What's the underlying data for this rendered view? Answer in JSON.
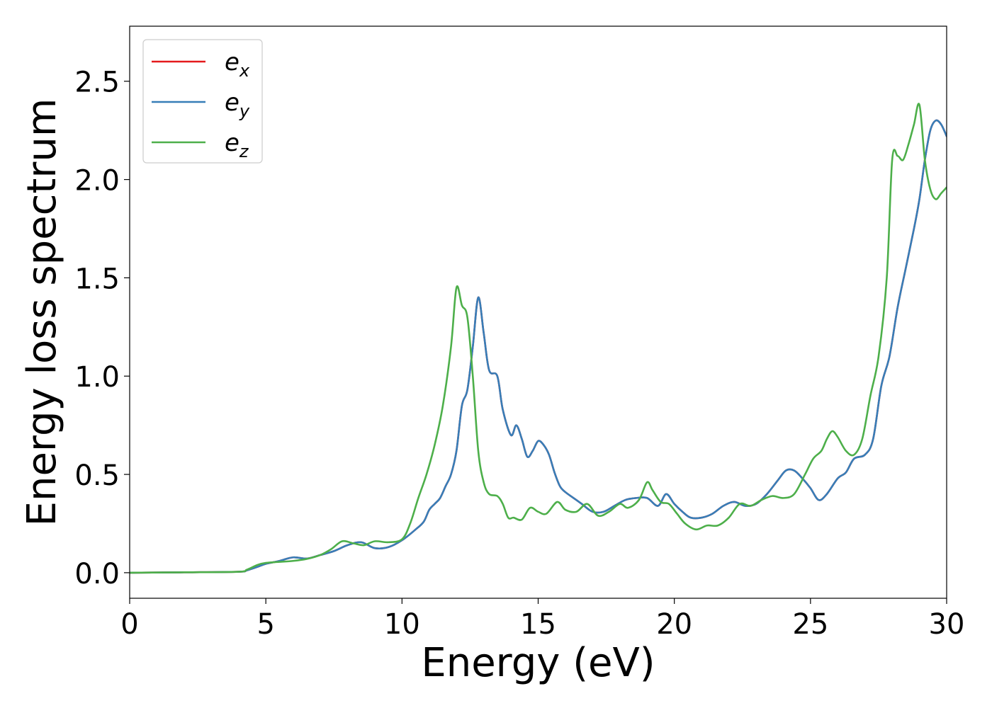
{
  "chart_data": {
    "type": "line",
    "title": "",
    "xlabel": "Energy (eV)",
    "ylabel": "Energy loss spectrum",
    "xlim": [
      0,
      30
    ],
    "ylim": [
      -0.13,
      2.78
    ],
    "xticks": [
      0,
      5,
      10,
      15,
      20,
      25,
      30
    ],
    "xtick_labels": [
      "0",
      "5",
      "10",
      "15",
      "20",
      "25",
      "30"
    ],
    "yticks": [
      0.0,
      0.5,
      1.0,
      1.5,
      2.0,
      2.5
    ],
    "ytick_labels": [
      "0.0",
      "0.5",
      "1.0",
      "1.5",
      "2.0",
      "2.5"
    ],
    "grid": false,
    "legend_position": "top-left",
    "series": [
      {
        "name": "e_x",
        "legend_base": "e",
        "legend_sub": "x",
        "color": "#e41a1c",
        "x": [
          0,
          2,
          4,
          4.3,
          4.7,
          5.0,
          5.5,
          6.0,
          6.5,
          7.0,
          7.5,
          8.0,
          8.5,
          9.0,
          9.5,
          10.0,
          10.5,
          10.8,
          11.0,
          11.2,
          11.4,
          11.6,
          11.8,
          12.0,
          12.2,
          12.4,
          12.6,
          12.8,
          13.0,
          13.2,
          13.5,
          13.7,
          14.0,
          14.2,
          14.4,
          14.6,
          14.8,
          15.0,
          15.2,
          15.4,
          15.6,
          15.8,
          16.0,
          16.3,
          16.6,
          17.0,
          17.4,
          17.8,
          18.2,
          18.6,
          19.0,
          19.4,
          19.7,
          20.0,
          20.3,
          20.6,
          21.0,
          21.4,
          21.8,
          22.2,
          22.6,
          23.0,
          23.4,
          23.8,
          24.1,
          24.4,
          24.7,
          25.0,
          25.3,
          25.6,
          26.0,
          26.3,
          26.6,
          27.0,
          27.3,
          27.6,
          27.9,
          28.2,
          28.5,
          28.8,
          29.0,
          29.2,
          29.4,
          29.6,
          29.8,
          30.0
        ],
        "y": [
          0.0,
          0.002,
          0.005,
          0.012,
          0.03,
          0.045,
          0.06,
          0.078,
          0.072,
          0.09,
          0.11,
          0.14,
          0.155,
          0.125,
          0.13,
          0.165,
          0.22,
          0.26,
          0.32,
          0.35,
          0.38,
          0.44,
          0.5,
          0.62,
          0.85,
          0.93,
          1.15,
          1.4,
          1.22,
          1.03,
          1.0,
          0.83,
          0.7,
          0.75,
          0.68,
          0.59,
          0.62,
          0.67,
          0.65,
          0.6,
          0.51,
          0.44,
          0.41,
          0.38,
          0.35,
          0.31,
          0.31,
          0.34,
          0.37,
          0.38,
          0.38,
          0.34,
          0.4,
          0.35,
          0.31,
          0.28,
          0.28,
          0.3,
          0.34,
          0.36,
          0.34,
          0.35,
          0.4,
          0.47,
          0.52,
          0.52,
          0.48,
          0.43,
          0.37,
          0.4,
          0.48,
          0.51,
          0.58,
          0.6,
          0.68,
          0.95,
          1.1,
          1.35,
          1.55,
          1.75,
          1.9,
          2.1,
          2.25,
          2.3,
          2.28,
          2.22
        ]
      },
      {
        "name": "e_y",
        "legend_base": "e",
        "legend_sub": "y",
        "color": "#377eb8",
        "x": [
          0,
          2,
          4,
          4.3,
          4.7,
          5.0,
          5.5,
          6.0,
          6.5,
          7.0,
          7.5,
          8.0,
          8.5,
          9.0,
          9.5,
          10.0,
          10.5,
          10.8,
          11.0,
          11.2,
          11.4,
          11.6,
          11.8,
          12.0,
          12.2,
          12.4,
          12.6,
          12.8,
          13.0,
          13.2,
          13.5,
          13.7,
          14.0,
          14.2,
          14.4,
          14.6,
          14.8,
          15.0,
          15.2,
          15.4,
          15.6,
          15.8,
          16.0,
          16.3,
          16.6,
          17.0,
          17.4,
          17.8,
          18.2,
          18.6,
          19.0,
          19.4,
          19.7,
          20.0,
          20.3,
          20.6,
          21.0,
          21.4,
          21.8,
          22.2,
          22.6,
          23.0,
          23.4,
          23.8,
          24.1,
          24.4,
          24.7,
          25.0,
          25.3,
          25.6,
          26.0,
          26.3,
          26.6,
          27.0,
          27.3,
          27.6,
          27.9,
          28.2,
          28.5,
          28.8,
          29.0,
          29.2,
          29.4,
          29.6,
          29.8,
          30.0
        ],
        "y": [
          0.0,
          0.002,
          0.005,
          0.012,
          0.03,
          0.045,
          0.06,
          0.078,
          0.072,
          0.09,
          0.11,
          0.14,
          0.155,
          0.125,
          0.13,
          0.165,
          0.22,
          0.26,
          0.32,
          0.35,
          0.38,
          0.44,
          0.5,
          0.62,
          0.85,
          0.93,
          1.15,
          1.4,
          1.22,
          1.03,
          1.0,
          0.83,
          0.7,
          0.75,
          0.68,
          0.59,
          0.62,
          0.67,
          0.65,
          0.6,
          0.51,
          0.44,
          0.41,
          0.38,
          0.35,
          0.31,
          0.31,
          0.34,
          0.37,
          0.38,
          0.38,
          0.34,
          0.4,
          0.35,
          0.31,
          0.28,
          0.28,
          0.3,
          0.34,
          0.36,
          0.34,
          0.35,
          0.4,
          0.47,
          0.52,
          0.52,
          0.48,
          0.43,
          0.37,
          0.4,
          0.48,
          0.51,
          0.58,
          0.6,
          0.68,
          0.95,
          1.1,
          1.35,
          1.55,
          1.75,
          1.9,
          2.1,
          2.25,
          2.3,
          2.28,
          2.22
        ]
      },
      {
        "name": "e_z",
        "legend_base": "e",
        "legend_sub": "z",
        "color": "#4daf4a",
        "x": [
          0,
          2,
          4,
          4.3,
          4.7,
          5.0,
          5.5,
          6.0,
          6.5,
          7.0,
          7.4,
          7.8,
          8.2,
          8.6,
          9.0,
          9.5,
          10.0,
          10.3,
          10.6,
          10.9,
          11.2,
          11.5,
          11.8,
          12.0,
          12.2,
          12.4,
          12.6,
          12.8,
          13.0,
          13.2,
          13.5,
          13.7,
          13.9,
          14.1,
          14.4,
          14.7,
          15.0,
          15.3,
          15.7,
          16.0,
          16.4,
          16.8,
          17.2,
          17.6,
          18.0,
          18.3,
          18.7,
          19.0,
          19.2,
          19.5,
          19.8,
          20.1,
          20.4,
          20.8,
          21.2,
          21.6,
          22.0,
          22.4,
          22.8,
          23.2,
          23.6,
          24.0,
          24.4,
          24.8,
          25.1,
          25.4,
          25.6,
          25.8,
          26.0,
          26.3,
          26.6,
          26.9,
          27.2,
          27.5,
          27.8,
          28.0,
          28.2,
          28.4,
          28.6,
          28.8,
          29.0,
          29.2,
          29.4,
          29.6,
          29.8,
          30.0
        ],
        "y": [
          0.0,
          0.002,
          0.005,
          0.015,
          0.04,
          0.05,
          0.055,
          0.06,
          0.07,
          0.09,
          0.12,
          0.16,
          0.15,
          0.14,
          0.16,
          0.155,
          0.17,
          0.25,
          0.38,
          0.5,
          0.65,
          0.85,
          1.15,
          1.45,
          1.36,
          1.3,
          1.0,
          0.62,
          0.46,
          0.4,
          0.39,
          0.35,
          0.28,
          0.28,
          0.27,
          0.33,
          0.31,
          0.3,
          0.36,
          0.32,
          0.31,
          0.35,
          0.29,
          0.31,
          0.35,
          0.33,
          0.37,
          0.46,
          0.42,
          0.36,
          0.35,
          0.3,
          0.25,
          0.22,
          0.24,
          0.24,
          0.28,
          0.35,
          0.34,
          0.37,
          0.39,
          0.38,
          0.4,
          0.5,
          0.58,
          0.62,
          0.68,
          0.72,
          0.69,
          0.62,
          0.6,
          0.68,
          0.9,
          1.1,
          1.5,
          2.1,
          2.12,
          2.1,
          2.18,
          2.28,
          2.38,
          2.1,
          1.95,
          1.9,
          1.93,
          1.96
        ]
      }
    ]
  }
}
